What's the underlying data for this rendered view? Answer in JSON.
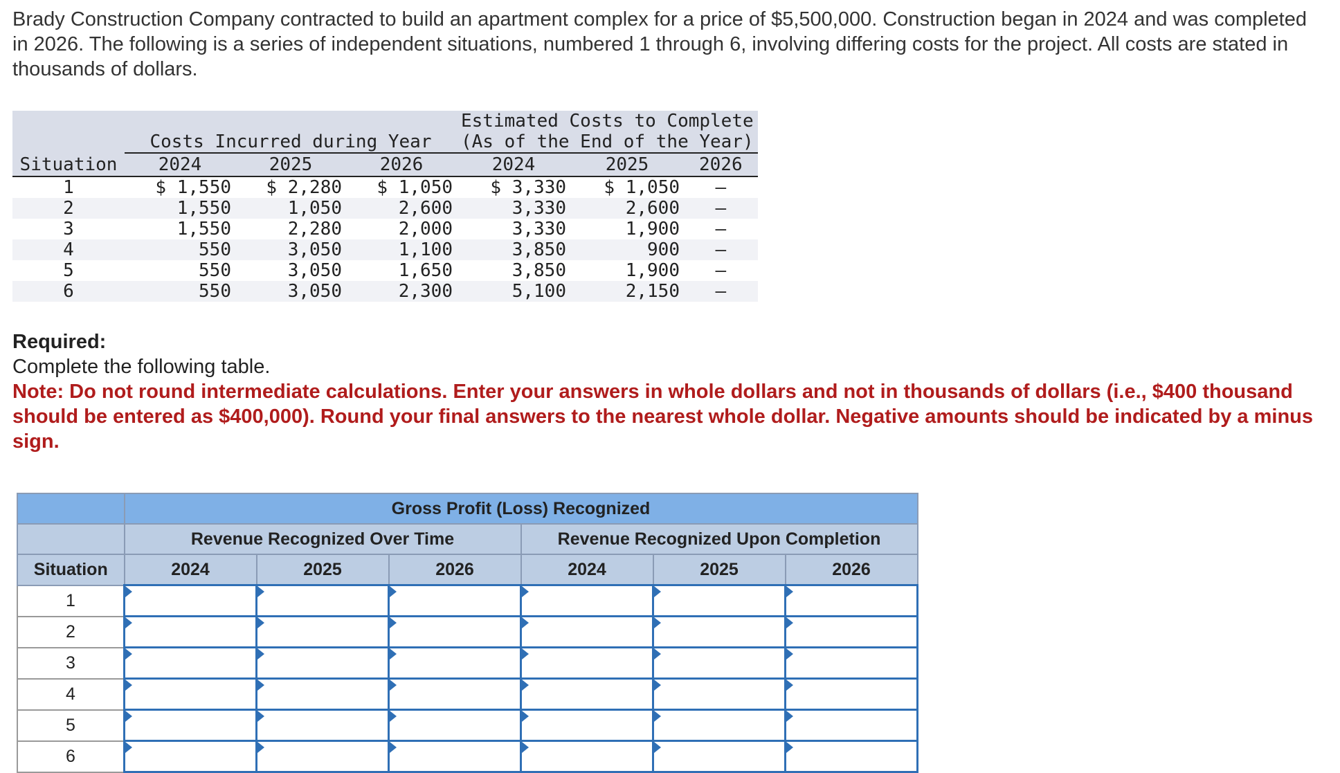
{
  "intro": "Brady Construction Company contracted to build an apartment complex for a price of $5,500,000. Construction began in 2024 and was completed in 2026. The following is a series of independent situations, numbered 1 through 6, involving differing costs for the project. All costs are stated in thousands of dollars.",
  "costs_table": {
    "group_incurred": "Costs Incurred during Year",
    "group_estimated_line1": "Estimated Costs to Complete",
    "group_estimated_line2": "(As of the End of the Year)",
    "situation_label": "Situation",
    "years": [
      "2024",
      "2025",
      "2026",
      "2024",
      "2025",
      "2026"
    ],
    "rows": [
      {
        "situation": "1",
        "c2024": "$ 1,550",
        "c2025": "$ 2,280",
        "c2026": "$ 1,050",
        "e2024": "$ 3,330",
        "e2025": "$ 1,050",
        "e2026": "—"
      },
      {
        "situation": "2",
        "c2024": "1,550",
        "c2025": "1,050",
        "c2026": "2,600",
        "e2024": "3,330",
        "e2025": "2,600",
        "e2026": "—"
      },
      {
        "situation": "3",
        "c2024": "1,550",
        "c2025": "2,280",
        "c2026": "2,000",
        "e2024": "3,330",
        "e2025": "1,900",
        "e2026": "—"
      },
      {
        "situation": "4",
        "c2024": "550",
        "c2025": "3,050",
        "c2026": "1,100",
        "e2024": "3,850",
        "e2025": "900",
        "e2026": "—"
      },
      {
        "situation": "5",
        "c2024": "550",
        "c2025": "3,050",
        "c2026": "1,650",
        "e2024": "3,850",
        "e2025": "1,900",
        "e2026": "—"
      },
      {
        "situation": "6",
        "c2024": "550",
        "c2025": "3,050",
        "c2026": "2,300",
        "e2024": "5,100",
        "e2025": "2,150",
        "e2026": "—"
      }
    ]
  },
  "required": {
    "heading": "Required:",
    "text": "Complete the following table.",
    "note": "Note: Do not round intermediate calculations. Enter your answers in whole dollars and not in thousands of dollars (i.e., $400 thousand should be entered as $400,000). Round your final answers to the nearest whole dollar. Negative amounts should be indicated by a minus sign."
  },
  "answer_table": {
    "title": "Gross Profit (Loss) Recognized",
    "group_over_time": "Revenue Recognized Over Time",
    "group_completion": "Revenue Recognized Upon Completion",
    "situation_label": "Situation",
    "years": [
      "2024",
      "2025",
      "2026",
      "2024",
      "2025",
      "2026"
    ],
    "situations": [
      "1",
      "2",
      "3",
      "4",
      "5",
      "6"
    ],
    "values": [
      [
        "",
        "",
        "",
        "",
        "",
        ""
      ],
      [
        "",
        "",
        "",
        "",
        "",
        ""
      ],
      [
        "",
        "",
        "",
        "",
        "",
        ""
      ],
      [
        "",
        "",
        "",
        "",
        "",
        ""
      ],
      [
        "",
        "",
        "",
        "",
        "",
        ""
      ],
      [
        "",
        "",
        "",
        "",
        "",
        ""
      ]
    ]
  },
  "colors": {
    "note_red": "#b01c1c",
    "header_blue": "#7fb0e6",
    "subheader_blue": "#bccde3",
    "input_border": "#2f6fb5"
  }
}
